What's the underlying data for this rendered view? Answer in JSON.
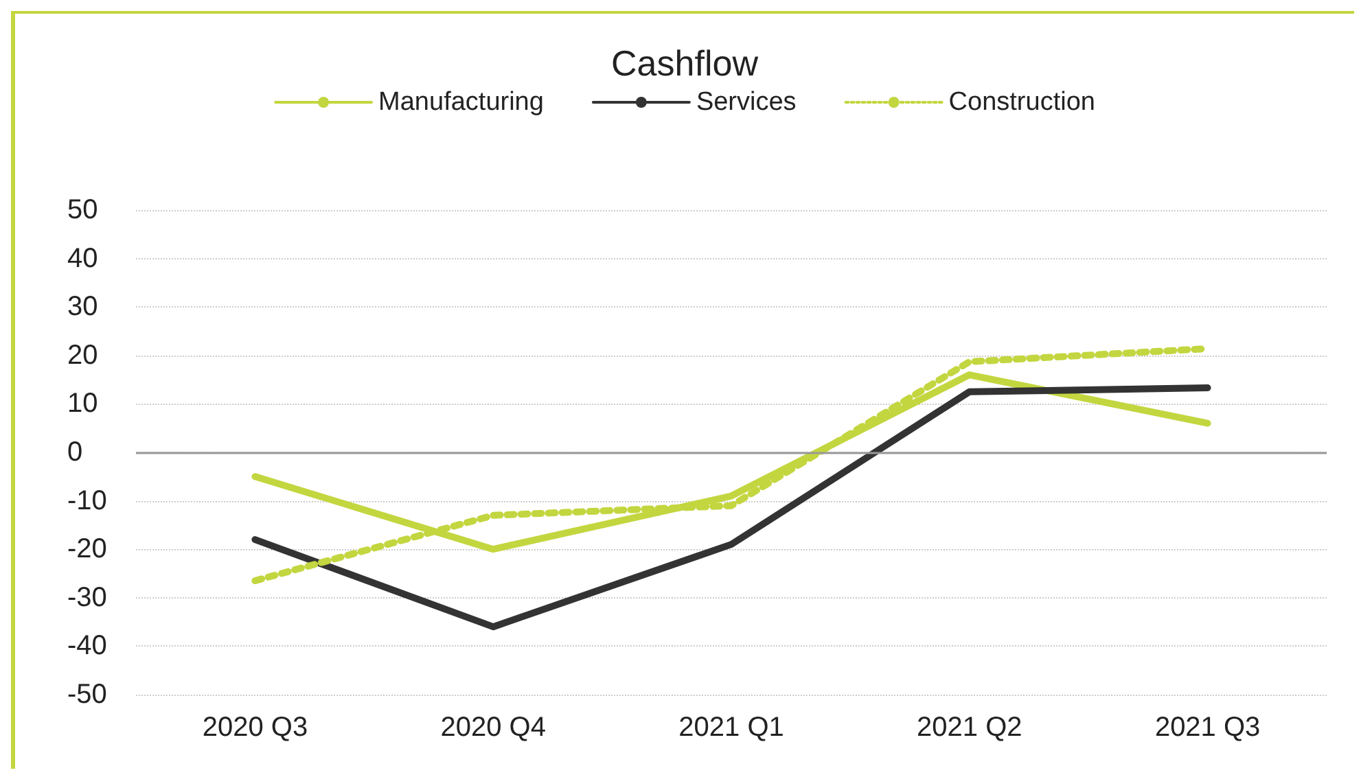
{
  "chart_data": {
    "type": "line",
    "title": "Cashflow",
    "categories": [
      "2020 Q3",
      "2020 Q4",
      "2021 Q1",
      "2021 Q2",
      "2021 Q3"
    ],
    "series": [
      {
        "name": "Manufacturing",
        "color": "#c3d63f",
        "line_style": "solid",
        "values": [
          -5,
          -20,
          -9,
          16,
          6
        ]
      },
      {
        "name": "Services",
        "color": "#333333",
        "line_style": "solid",
        "values": [
          -18,
          -36,
          -19,
          12.5,
          13.3
        ]
      },
      {
        "name": "Construction",
        "color": "#c3d63f",
        "line_style": "dotted",
        "values": [
          -26.5,
          -13,
          -11,
          18.7,
          21.4
        ]
      }
    ],
    "ylim": [
      -50,
      50
    ],
    "yticks": [
      -50,
      -40,
      -30,
      -20,
      -10,
      0,
      10,
      20,
      30,
      40,
      50
    ],
    "ref_lines": [
      {
        "axis": "y",
        "value": 0,
        "color": "#999999",
        "line_style": "solid"
      }
    ],
    "grid": "y",
    "legend": "top",
    "marker": "none"
  }
}
